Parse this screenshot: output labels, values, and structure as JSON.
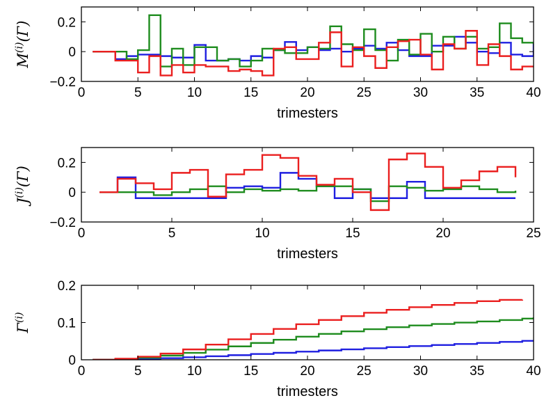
{
  "colors": {
    "s1": "#1f1fe0",
    "s2": "#1e8c1e",
    "s3": "#ea1f1f"
  },
  "chart_data": [
    {
      "type": "line",
      "step": true,
      "xlabel": "trimesters",
      "ylabel": "M^{(i)}(Γ)",
      "xlim": [
        0,
        40
      ],
      "ylim": [
        -0.2,
        0.3
      ],
      "xticks": [
        "0",
        "5",
        "10",
        "15",
        "20",
        "25",
        "30",
        "35",
        "40"
      ],
      "yticks": [
        "−0.2",
        "0",
        "0.2"
      ],
      "series": [
        {
          "color": "s1",
          "x": [
            1,
            2,
            3,
            4,
            5,
            6,
            7,
            8,
            9,
            10,
            11,
            12,
            13,
            14,
            15,
            16,
            17,
            18,
            19,
            20,
            21,
            22,
            23,
            24,
            25,
            26,
            27,
            28,
            29,
            30,
            31,
            32,
            33,
            34,
            35,
            36,
            37,
            38,
            39,
            40
          ],
          "values": [
            0,
            0,
            -0.05,
            -0.03,
            -0.02,
            -0.02,
            -0.03,
            -0.04,
            -0.04,
            0.045,
            -0.06,
            -0.06,
            -0.05,
            -0.06,
            -0.03,
            -0.04,
            0.01,
            0.065,
            0.01,
            0.03,
            0.01,
            0.02,
            0,
            0.02,
            0.04,
            0.02,
            0.06,
            0.01,
            -0.03,
            -0.03,
            0.04,
            0.04,
            0.1,
            0.06,
            0,
            -0.01,
            0.06,
            -0.02,
            -0.03,
            0.06
          ]
        },
        {
          "color": "s2",
          "x": [
            1,
            2,
            3,
            4,
            5,
            6,
            7,
            8,
            9,
            10,
            11,
            12,
            13,
            14,
            15,
            16,
            17,
            18,
            19,
            20,
            21,
            22,
            23,
            24,
            25,
            26,
            27,
            28,
            29,
            30,
            31,
            32,
            33,
            34,
            35,
            36,
            37,
            38,
            39,
            40
          ],
          "values": [
            0,
            0,
            0,
            -0.05,
            0.01,
            0.245,
            -0.1,
            0.02,
            -0.09,
            0.03,
            0.03,
            -0.06,
            -0.05,
            -0.1,
            -0.06,
            0.02,
            0.01,
            -0.01,
            -0.01,
            0.03,
            0.02,
            0.17,
            0.05,
            0.01,
            0.15,
            0.01,
            -0.06,
            0.08,
            -0.02,
            0.12,
            0,
            0.1,
            0.02,
            0.1,
            0.02,
            0.03,
            0.19,
            0.09,
            0.06,
            0.05
          ]
        },
        {
          "color": "s3",
          "x": [
            1,
            2,
            3,
            4,
            5,
            6,
            7,
            8,
            9,
            10,
            11,
            12,
            13,
            14,
            15,
            16,
            17,
            18,
            19,
            20,
            21,
            22,
            23,
            24,
            25,
            26,
            27,
            28,
            29,
            30,
            31,
            32,
            33,
            34,
            35,
            36,
            37,
            38,
            39,
            40
          ],
          "values": [
            0,
            0,
            -0.06,
            -0.06,
            -0.14,
            -0.03,
            -0.16,
            -0.09,
            -0.14,
            -0.09,
            -0.1,
            -0.1,
            -0.13,
            -0.12,
            -0.13,
            -0.16,
            0.02,
            0.03,
            -0.05,
            -0.05,
            0.06,
            0.13,
            -0.1,
            0.03,
            -0.03,
            -0.11,
            0.03,
            0.07,
            0.08,
            -0.02,
            -0.12,
            0.05,
            0.02,
            0.14,
            -0.09,
            0.05,
            -0.03,
            -0.12,
            -0.1,
            -0.1
          ]
        }
      ]
    },
    {
      "type": "line",
      "step": true,
      "xlabel": "trimesters",
      "ylabel": "J^{(i)}(Γ)",
      "xlim": [
        0,
        25
      ],
      "ylim": [
        -0.2,
        0.3
      ],
      "xticks": [
        "0",
        "5",
        "10",
        "15",
        "20",
        "25"
      ],
      "yticks": [
        "−0.2",
        "0",
        "0.2"
      ],
      "series": [
        {
          "color": "s1",
          "x": [
            1,
            2,
            3,
            4,
            5,
            6,
            7,
            8,
            9,
            10,
            11,
            12,
            13,
            14,
            15,
            16,
            17,
            18,
            19,
            20,
            21,
            22,
            23,
            24
          ],
          "values": [
            0,
            0.1,
            -0.04,
            -0.04,
            -0.04,
            -0.04,
            -0.04,
            0.03,
            0.04,
            0.03,
            0.13,
            0.09,
            0.04,
            -0.04,
            0.02,
            -0.04,
            -0.04,
            0.07,
            -0.04,
            -0.04,
            -0.04,
            -0.04,
            -0.04,
            -0.04
          ]
        },
        {
          "color": "s2",
          "x": [
            1,
            2,
            3,
            4,
            5,
            6,
            7,
            8,
            9,
            10,
            11,
            12,
            13,
            14,
            15,
            16,
            17,
            18,
            19,
            20,
            21,
            22,
            23,
            24
          ],
          "values": [
            0,
            0,
            0,
            -0.02,
            0,
            0.02,
            0.04,
            0,
            0.02,
            0.01,
            0.02,
            0.01,
            0.04,
            0.04,
            0.02,
            -0.06,
            0.04,
            0.03,
            0.01,
            0.02,
            0.04,
            0.02,
            0,
            0.01
          ]
        },
        {
          "color": "s3",
          "x": [
            1,
            2,
            3,
            4,
            5,
            6,
            7,
            8,
            9,
            10,
            11,
            12,
            13,
            14,
            15,
            16,
            17,
            18,
            19,
            20,
            21,
            22,
            23,
            24
          ],
          "values": [
            0,
            0.09,
            0.06,
            0.02,
            0.13,
            0.15,
            -0.03,
            0.12,
            0.15,
            0.25,
            0.23,
            0.11,
            0.05,
            0.09,
            0,
            -0.12,
            0.22,
            0.26,
            0.17,
            0.03,
            0.08,
            0.14,
            0.17,
            0.1
          ]
        }
      ]
    },
    {
      "type": "line",
      "step": true,
      "xlabel": "trimesters",
      "ylabel": "Γ^{(i)}",
      "xlim": [
        0,
        40
      ],
      "ylim": [
        0,
        0.2
      ],
      "xticks": [
        "0",
        "5",
        "10",
        "15",
        "20",
        "25",
        "30",
        "35",
        "40"
      ],
      "yticks": [
        "0",
        "0.1",
        "0.2"
      ],
      "series": [
        {
          "color": "s1",
          "x": [
            1,
            3,
            5,
            7,
            9,
            11,
            13,
            15,
            17,
            19,
            21,
            23,
            25,
            27,
            29,
            31,
            33,
            35,
            37,
            39,
            40
          ],
          "values": [
            0,
            0.0011,
            0.0025,
            0.0044,
            0.0067,
            0.0094,
            0.0124,
            0.0155,
            0.0187,
            0.0219,
            0.025,
            0.028,
            0.031,
            0.034,
            0.0368,
            0.0396,
            0.0424,
            0.0452,
            0.048,
            0.0508,
            0.053
          ]
        },
        {
          "color": "s2",
          "x": [
            1,
            3,
            5,
            7,
            9,
            11,
            13,
            15,
            17,
            19,
            21,
            23,
            25,
            27,
            29,
            31,
            33,
            35,
            37,
            39,
            40
          ],
          "values": [
            0,
            0.002,
            0.0055,
            0.0112,
            0.0186,
            0.0273,
            0.036,
            0.0451,
            0.0539,
            0.0621,
            0.0696,
            0.0763,
            0.0822,
            0.0875,
            0.0921,
            0.0962,
            0.0998,
            0.1029,
            0.1067,
            0.1107,
            0.114
          ]
        },
        {
          "color": "s3",
          "x": [
            1,
            3,
            5,
            7,
            9,
            11,
            13,
            15,
            17,
            19,
            21,
            23,
            25,
            27,
            29,
            31,
            33,
            35,
            37,
            39
          ],
          "values": [
            0,
            0.003,
            0.0083,
            0.0167,
            0.0278,
            0.0408,
            0.055,
            0.0692,
            0.0828,
            0.0954,
            0.1069,
            0.1172,
            0.1263,
            0.1343,
            0.1413,
            0.1474,
            0.1527,
            0.1573,
            0.1609,
            0.1615
          ]
        }
      ]
    }
  ]
}
